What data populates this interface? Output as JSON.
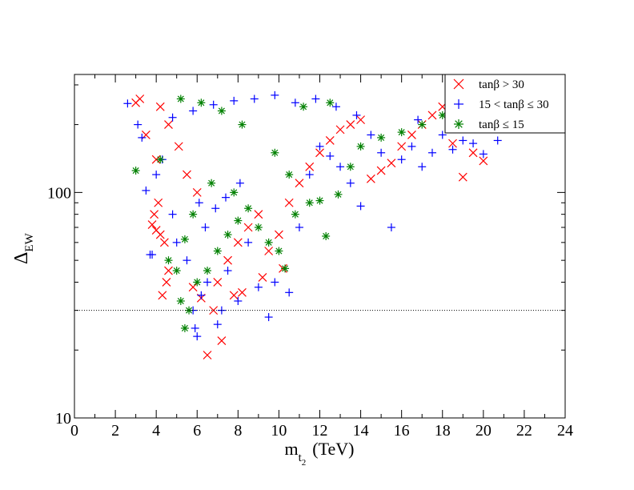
{
  "chart_data": {
    "type": "scatter",
    "title": "",
    "xlabel": "m",
    "xlabel_sub": "t",
    "xlabel_subsub": "2",
    "xlabel_unit": "(TeV)",
    "ylabel": "Δ",
    "ylabel_sub": "EW",
    "xlim": [
      0,
      24
    ],
    "ylim": [
      10,
      300
    ],
    "yscale": "log",
    "x_ticks": [
      0,
      2,
      4,
      6,
      8,
      10,
      12,
      14,
      16,
      18,
      20,
      22,
      24
    ],
    "x_tick_labels": [
      "0",
      "2",
      "4",
      "6",
      "8",
      "10",
      "12",
      "14",
      "16",
      "18",
      "20",
      "22",
      "24"
    ],
    "y_ticks": [
      10,
      100
    ],
    "y_tick_labels": [
      "10",
      "100"
    ],
    "reference_line": {
      "y": 30,
      "style": "dotted"
    },
    "grid": false,
    "legend_position": "top-right",
    "series": [
      {
        "name": "tanβ > 30",
        "marker": "x",
        "color": "#ff0000",
        "points": [
          [
            3.8,
            72
          ],
          [
            4.0,
            68
          ],
          [
            4.2,
            65
          ],
          [
            4.4,
            60
          ],
          [
            3.9,
            80
          ],
          [
            4.1,
            90
          ],
          [
            4.3,
            35
          ],
          [
            4.5,
            40
          ],
          [
            4.6,
            45
          ],
          [
            4.0,
            140
          ],
          [
            3.5,
            180
          ],
          [
            3.2,
            260
          ],
          [
            3.0,
            250
          ],
          [
            4.2,
            240
          ],
          [
            4.6,
            200
          ],
          [
            5.1,
            160
          ],
          [
            5.5,
            120
          ],
          [
            6.0,
            100
          ],
          [
            6.5,
            19
          ],
          [
            7.2,
            22
          ],
          [
            6.8,
            30
          ],
          [
            7.0,
            40
          ],
          [
            7.5,
            50
          ],
          [
            8.0,
            60
          ],
          [
            8.5,
            70
          ],
          [
            9.0,
            80
          ],
          [
            9.5,
            55
          ],
          [
            10.0,
            65
          ],
          [
            10.5,
            90
          ],
          [
            11.0,
            110
          ],
          [
            11.5,
            130
          ],
          [
            12.0,
            150
          ],
          [
            12.5,
            170
          ],
          [
            13.0,
            190
          ],
          [
            13.5,
            200
          ],
          [
            14.0,
            210
          ],
          [
            14.5,
            115
          ],
          [
            15.0,
            125
          ],
          [
            15.5,
            135
          ],
          [
            16.0,
            160
          ],
          [
            16.5,
            180
          ],
          [
            17.0,
            200
          ],
          [
            17.5,
            220
          ],
          [
            18.0,
            240
          ],
          [
            18.5,
            165
          ],
          [
            19.0,
            117
          ],
          [
            19.5,
            150
          ],
          [
            20.0,
            138
          ],
          [
            7.8,
            35
          ],
          [
            8.2,
            36
          ],
          [
            6.2,
            34
          ],
          [
            5.8,
            38
          ],
          [
            9.2,
            42
          ],
          [
            10.2,
            46
          ]
        ]
      },
      {
        "name": "15 < tanβ ≤ 30",
        "marker": "+",
        "color": "#0000ff",
        "points": [
          [
            2.6,
            248
          ],
          [
            3.1,
            200
          ],
          [
            3.3,
            175
          ],
          [
            3.5,
            102
          ],
          [
            3.7,
            53
          ],
          [
            3.8,
            53
          ],
          [
            4.0,
            120
          ],
          [
            4.3,
            140
          ],
          [
            4.8,
            80
          ],
          [
            5.0,
            60
          ],
          [
            5.5,
            50
          ],
          [
            5.8,
            30
          ],
          [
            5.9,
            25
          ],
          [
            6.0,
            23
          ],
          [
            6.2,
            35
          ],
          [
            6.5,
            40
          ],
          [
            7.0,
            26
          ],
          [
            7.2,
            30
          ],
          [
            7.5,
            45
          ],
          [
            8.0,
            33
          ],
          [
            8.5,
            60
          ],
          [
            9.0,
            38
          ],
          [
            9.5,
            28
          ],
          [
            9.8,
            40
          ],
          [
            10.5,
            36
          ],
          [
            11.0,
            70
          ],
          [
            11.5,
            120
          ],
          [
            12.0,
            160
          ],
          [
            12.5,
            145
          ],
          [
            13.0,
            130
          ],
          [
            13.5,
            110
          ],
          [
            14.0,
            87
          ],
          [
            14.5,
            180
          ],
          [
            15.0,
            150
          ],
          [
            15.5,
            70
          ],
          [
            16.0,
            140
          ],
          [
            16.5,
            160
          ],
          [
            17.0,
            130
          ],
          [
            17.5,
            150
          ],
          [
            18.0,
            180
          ],
          [
            18.5,
            155
          ],
          [
            19.0,
            170
          ],
          [
            19.5,
            165
          ],
          [
            20.0,
            148
          ],
          [
            20.7,
            170
          ],
          [
            19.2,
            200
          ],
          [
            16.8,
            210
          ],
          [
            13.8,
            220
          ],
          [
            12.8,
            240
          ],
          [
            11.8,
            260
          ],
          [
            10.8,
            250
          ],
          [
            9.8,
            270
          ],
          [
            8.8,
            260
          ],
          [
            7.8,
            255
          ],
          [
            6.8,
            245
          ],
          [
            5.8,
            230
          ],
          [
            4.8,
            215
          ],
          [
            6.1,
            90
          ],
          [
            6.4,
            70
          ],
          [
            6.9,
            85
          ],
          [
            7.4,
            95
          ],
          [
            8.1,
            110
          ]
        ]
      },
      {
        "name": "tanβ ≤ 15",
        "marker": "*",
        "color": "#008000",
        "points": [
          [
            3.0,
            125
          ],
          [
            4.2,
            140
          ],
          [
            4.6,
            50
          ],
          [
            5.0,
            45
          ],
          [
            5.2,
            33
          ],
          [
            5.4,
            25
          ],
          [
            5.6,
            30
          ],
          [
            6.0,
            40
          ],
          [
            6.5,
            45
          ],
          [
            7.0,
            55
          ],
          [
            7.5,
            65
          ],
          [
            8.0,
            75
          ],
          [
            8.5,
            85
          ],
          [
            9.0,
            70
          ],
          [
            9.5,
            60
          ],
          [
            10.0,
            55
          ],
          [
            10.3,
            46
          ],
          [
            10.8,
            80
          ],
          [
            11.5,
            90
          ],
          [
            12.0,
            92
          ],
          [
            12.3,
            64
          ],
          [
            12.9,
            98
          ],
          [
            13.5,
            130
          ],
          [
            14.0,
            160
          ],
          [
            15.0,
            175
          ],
          [
            16.0,
            185
          ],
          [
            17.0,
            200
          ],
          [
            18.0,
            220
          ],
          [
            10.5,
            120
          ],
          [
            9.8,
            150
          ],
          [
            8.2,
            200
          ],
          [
            7.2,
            230
          ],
          [
            6.2,
            250
          ],
          [
            5.2,
            260
          ],
          [
            11.2,
            240
          ],
          [
            12.5,
            250
          ],
          [
            6.7,
            110
          ],
          [
            7.8,
            100
          ],
          [
            5.8,
            80
          ],
          [
            5.4,
            62
          ]
        ]
      }
    ]
  }
}
